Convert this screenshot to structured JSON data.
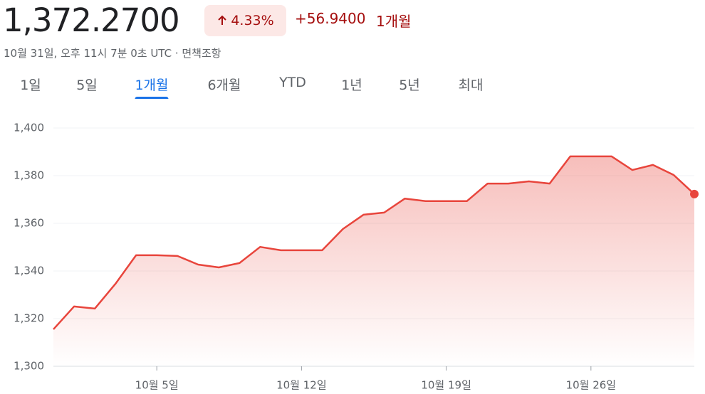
{
  "header": {
    "price": "1,372.2700",
    "change_percent": "4.33%",
    "change": "+56.9400",
    "period": "1개월",
    "timestamp": "10월 31일, 오후 11시 7분 0초 UTC · 면책조항"
  },
  "tabs": [
    "1일",
    "5일",
    "1개월",
    "6개월",
    "YTD",
    "1년",
    "5년",
    "최대"
  ],
  "chart_data": {
    "type": "area",
    "categories": [
      null,
      null,
      null,
      null,
      null,
      "10월 5일",
      null,
      null,
      null,
      null,
      null,
      null,
      "10월 12일",
      null,
      null,
      null,
      null,
      null,
      null,
      "10월 19일",
      null,
      null,
      null,
      null,
      null,
      null,
      "10월 26일",
      null,
      null,
      null,
      null,
      null
    ],
    "values": [
      1315.5,
      1325.1,
      1324.2,
      1334.6,
      1346.6,
      1346.6,
      1346.3,
      1342.7,
      1341.5,
      1343.3,
      1350.1,
      1348.7,
      1348.7,
      1348.7,
      1357.6,
      1363.6,
      1364.5,
      1370.4,
      1369.3,
      1369.3,
      1369.3,
      1376.7,
      1376.7,
      1377.6,
      1376.7,
      1388.1,
      1388.1,
      1388.1,
      1382.4,
      1384.5,
      1380.3,
      1372.27
    ],
    "color": "#e8453c",
    "ylim": [
      1300,
      1400
    ],
    "yticks": [
      {
        "value": 1300,
        "label": "1,300"
      },
      {
        "value": 1320,
        "label": "1,320"
      },
      {
        "value": 1340,
        "label": "1,340"
      },
      {
        "value": 1360,
        "label": "1,360"
      },
      {
        "value": 1380,
        "label": "1,380"
      },
      {
        "value": 1400,
        "label": "1,400"
      }
    ],
    "grid": true
  }
}
